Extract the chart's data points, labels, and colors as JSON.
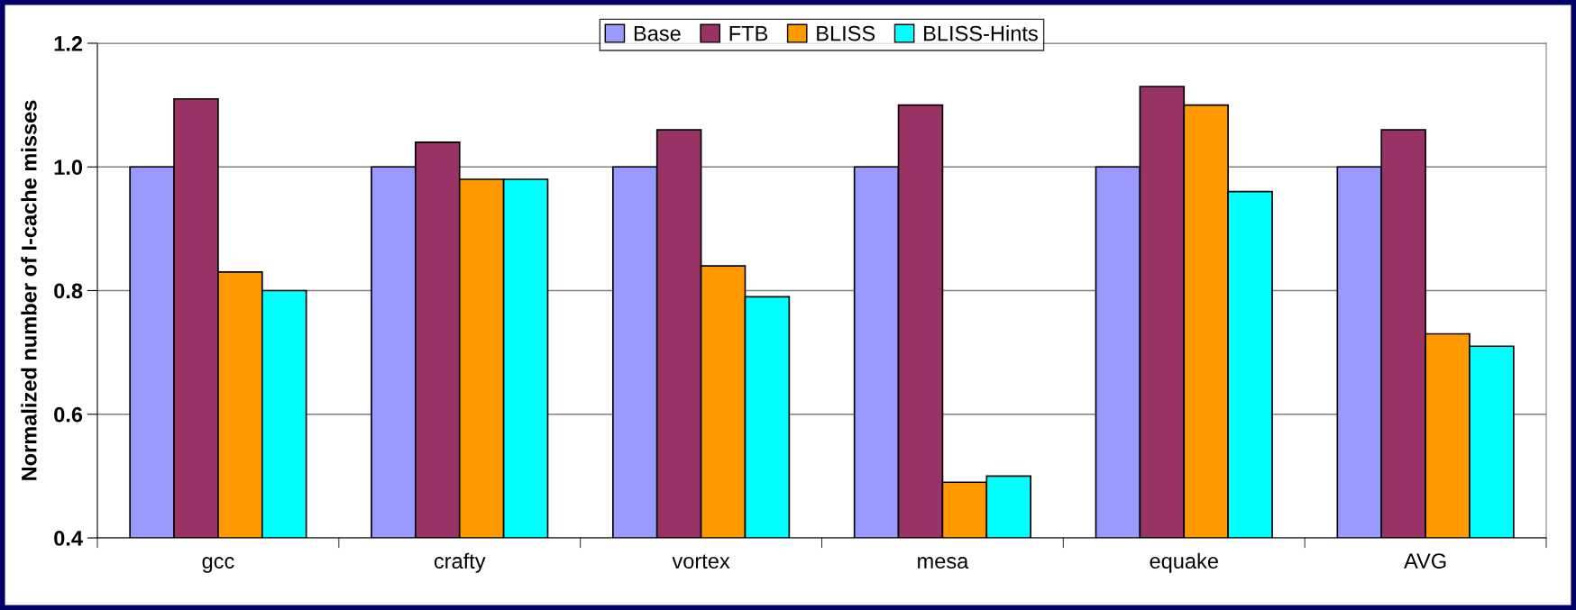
{
  "chart_data": {
    "type": "bar",
    "ylabel": "Normalized number of I-cache misses",
    "categories": [
      "gcc",
      "crafty",
      "vortex",
      "mesa",
      "equake",
      "AVG"
    ],
    "series": [
      {
        "name": "Base",
        "color": "#9999ff",
        "values": [
          1.0,
          1.0,
          1.0,
          1.0,
          1.0,
          1.0
        ]
      },
      {
        "name": "FTB",
        "color": "#993366",
        "values": [
          1.11,
          1.04,
          1.06,
          1.1,
          1.13,
          1.06
        ]
      },
      {
        "name": "BLISS",
        "color": "#ff9900",
        "values": [
          0.83,
          0.98,
          0.84,
          0.49,
          1.1,
          0.73
        ]
      },
      {
        "name": "BLISS-Hints",
        "color": "#00ffff",
        "values": [
          0.8,
          0.98,
          0.79,
          0.5,
          0.96,
          0.71
        ]
      }
    ],
    "ylim": [
      0.4,
      1.2
    ],
    "yticks": [
      {
        "value": 0.4,
        "label": "0.4"
      },
      {
        "value": 0.6,
        "label": "0.6"
      },
      {
        "value": 0.8,
        "label": "0.8"
      },
      {
        "value": 1.0,
        "label": "1.0"
      },
      {
        "value": 1.2,
        "label": "1.2"
      }
    ],
    "grid": "y",
    "legend": "top"
  }
}
